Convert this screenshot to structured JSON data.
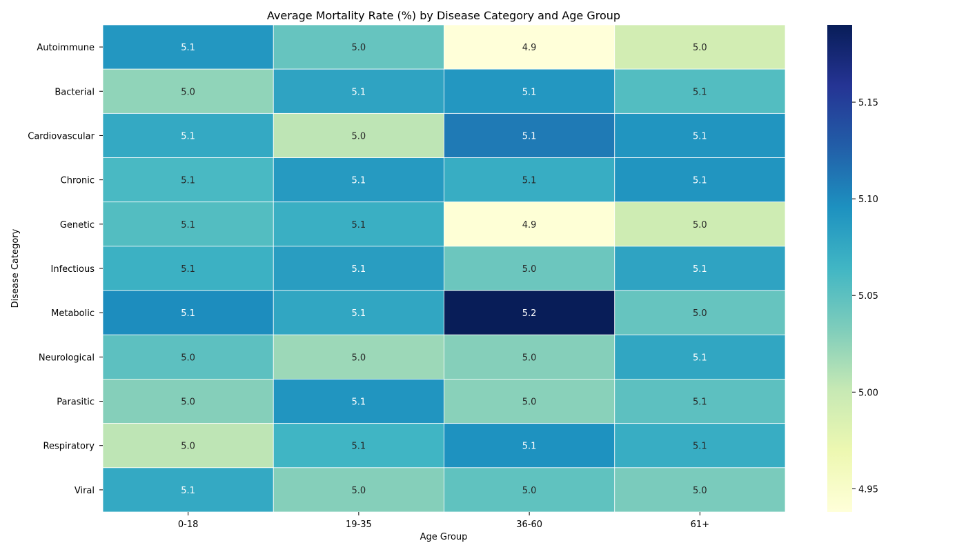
{
  "chart_data": {
    "type": "heatmap",
    "title": "Average Mortality Rate (%) by Disease Category and Age Group",
    "xlabel": "Age Group",
    "ylabel": "Disease Category",
    "columns": [
      "0-18",
      "19-35",
      "36-60",
      "61+"
    ],
    "rows": [
      "Autoimmune",
      "Bacterial",
      "Cardiovascular",
      "Chronic",
      "Genetic",
      "Infectious",
      "Metabolic",
      "Neurological",
      "Parasitic",
      "Respiratory",
      "Viral"
    ],
    "values": [
      [
        5.09,
        5.045,
        4.938,
        4.992
      ],
      [
        5.025,
        5.08,
        5.09,
        5.055
      ],
      [
        5.075,
        5.005,
        5.11,
        5.092
      ],
      [
        5.06,
        5.088,
        5.072,
        5.092
      ],
      [
        5.055,
        5.07,
        4.94,
        4.995
      ],
      [
        5.068,
        5.085,
        5.042,
        5.08
      ],
      [
        5.098,
        5.078,
        5.19,
        5.045
      ],
      [
        5.05,
        5.02,
        5.03,
        5.078
      ],
      [
        5.03,
        5.092,
        5.028,
        5.05
      ],
      [
        5.005,
        5.065,
        5.095,
        5.072
      ],
      [
        5.075,
        5.03,
        5.048,
        5.035
      ]
    ],
    "labels": [
      [
        "5.1",
        "5.0",
        "4.9",
        "5.0"
      ],
      [
        "5.0",
        "5.1",
        "5.1",
        "5.1"
      ],
      [
        "5.1",
        "5.0",
        "5.1",
        "5.1"
      ],
      [
        "5.1",
        "5.1",
        "5.1",
        "5.1"
      ],
      [
        "5.1",
        "5.1",
        "4.9",
        "5.0"
      ],
      [
        "5.1",
        "5.1",
        "5.0",
        "5.1"
      ],
      [
        "5.1",
        "5.1",
        "5.2",
        "5.0"
      ],
      [
        "5.0",
        "5.0",
        "5.0",
        "5.1"
      ],
      [
        "5.0",
        "5.1",
        "5.0",
        "5.1"
      ],
      [
        "5.0",
        "5.1",
        "5.1",
        "5.1"
      ],
      [
        "5.1",
        "5.0",
        "5.0",
        "5.0"
      ]
    ],
    "colorbar": {
      "min": 4.938,
      "max": 5.19,
      "ticks": [
        4.95,
        5.0,
        5.05,
        5.1,
        5.15
      ],
      "tick_labels": [
        "4.95",
        "5.00",
        "5.05",
        "5.10",
        "5.15"
      ],
      "colormap": "YlGnBu",
      "colormap_stops": [
        "#ffffd9",
        "#edf8b1",
        "#c7e9b4",
        "#7fcdbb",
        "#41b6c4",
        "#1d91c0",
        "#225ea8",
        "#253494",
        "#081d58"
      ]
    },
    "grid": false,
    "legend": "colorbar-right"
  }
}
